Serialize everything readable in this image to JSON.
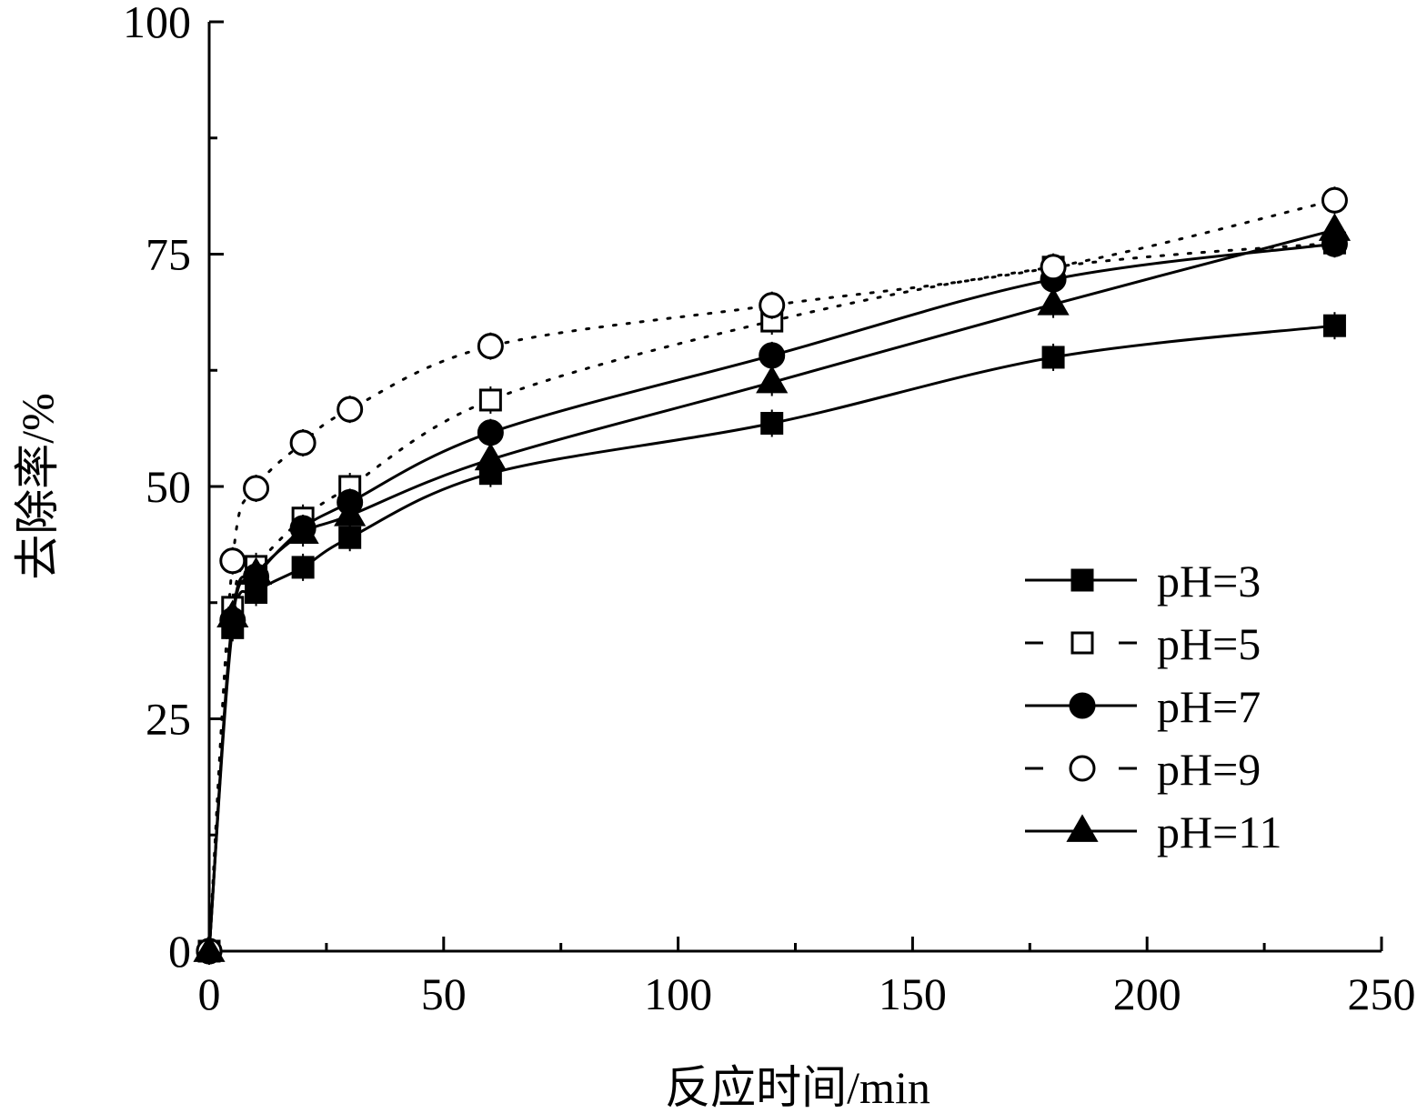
{
  "chart_data": {
    "type": "line",
    "title": "",
    "xlabel": "反应时间/min",
    "ylabel": "去除率/%",
    "xlim": [
      0,
      250
    ],
    "ylim": [
      0,
      100
    ],
    "xticks": [
      "0",
      "50",
      "100",
      "150",
      "200",
      "250"
    ],
    "yticks": [
      "0",
      "25",
      "50",
      "75",
      "100"
    ],
    "grid": false,
    "legend_position": "lower-right",
    "x": [
      0,
      5,
      10,
      20,
      30,
      60,
      120,
      180,
      240
    ],
    "series": [
      {
        "name": "pH=3",
        "marker": "square-filled",
        "line": "solid",
        "values": [
          0,
          34.8,
          38.6,
          41.3,
          44.5,
          51.4,
          56.8,
          63.9,
          67.3
        ]
      },
      {
        "name": "pH=5",
        "marker": "square-open",
        "line": "dotted",
        "values": [
          0,
          37.0,
          41.4,
          46.6,
          50.0,
          59.3,
          67.8,
          73.6,
          76.2
        ]
      },
      {
        "name": "pH=7",
        "marker": "circle-filled",
        "line": "solid",
        "values": [
          0,
          35.6,
          40.3,
          45.5,
          48.3,
          55.8,
          64.1,
          72.3,
          76.1
        ]
      },
      {
        "name": "pH=9",
        "marker": "circle-open",
        "line": "dotted",
        "values": [
          0,
          42.0,
          49.8,
          54.7,
          58.3,
          65.1,
          69.5,
          73.6,
          80.8
        ]
      },
      {
        "name": "pH=11",
        "marker": "triangle-filled",
        "line": "solid",
        "values": [
          0,
          36.0,
          40.6,
          45.0,
          46.9,
          52.9,
          61.2,
          69.6,
          77.6
        ]
      }
    ]
  }
}
